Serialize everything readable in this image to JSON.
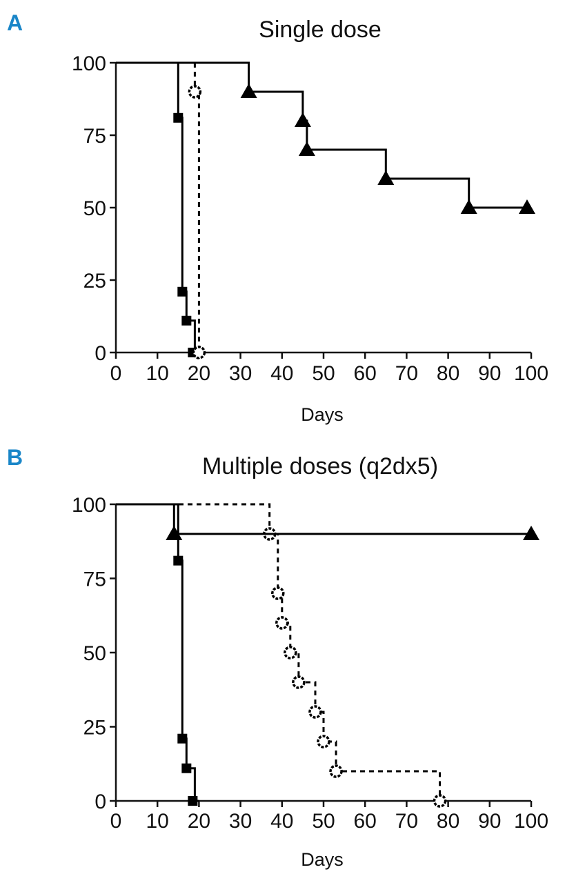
{
  "chart_data": [
    {
      "type": "line",
      "panel_label": "A",
      "title": "Single dose",
      "xlabel": "Days",
      "ylabel": "",
      "xlim": [
        0,
        100
      ],
      "ylim": [
        0,
        100
      ],
      "x_ticks": [
        0,
        10,
        20,
        30,
        40,
        50,
        60,
        70,
        80,
        90,
        100
      ],
      "y_ticks": [
        0,
        25,
        50,
        75,
        100
      ],
      "grid": false,
      "series": [
        {
          "marker": "square",
          "dashed": false,
          "steps": [
            [
              0,
              100
            ],
            [
              15,
              100
            ],
            [
              15,
              81
            ],
            [
              16,
              81
            ],
            [
              16,
              21
            ],
            [
              17,
              21
            ],
            [
              17,
              11
            ],
            [
              19,
              11
            ],
            [
              19,
              0
            ],
            [
              20,
              0
            ]
          ],
          "points": [
            [
              15,
              81
            ],
            [
              16,
              21
            ],
            [
              17,
              11
            ],
            [
              18.5,
              0
            ]
          ]
        },
        {
          "marker": "open-circle",
          "dashed": true,
          "steps": [
            [
              19,
              100
            ],
            [
              19,
              90
            ],
            [
              20,
              90
            ],
            [
              20,
              0
            ],
            [
              21,
              0
            ]
          ],
          "points": [
            [
              19,
              90
            ],
            [
              20,
              0
            ]
          ]
        },
        {
          "marker": "triangle",
          "dashed": false,
          "steps": [
            [
              0,
              100
            ],
            [
              32,
              100
            ],
            [
              32,
              90
            ],
            [
              45,
              90
            ],
            [
              45,
              80
            ],
            [
              46,
              80
            ],
            [
              46,
              70
            ],
            [
              65,
              70
            ],
            [
              65,
              60
            ],
            [
              85,
              60
            ],
            [
              85,
              50
            ],
            [
              99,
              50
            ]
          ],
          "points": [
            [
              32,
              90
            ],
            [
              45,
              80
            ],
            [
              46,
              70
            ],
            [
              65,
              60
            ],
            [
              85,
              50
            ],
            [
              99,
              50
            ]
          ]
        }
      ]
    },
    {
      "type": "line",
      "panel_label": "B",
      "title": "Multiple doses (q2dx5)",
      "xlabel": "Days",
      "ylabel": "",
      "xlim": [
        0,
        100
      ],
      "ylim": [
        0,
        100
      ],
      "x_ticks": [
        0,
        10,
        20,
        30,
        40,
        50,
        60,
        70,
        80,
        90,
        100
      ],
      "y_ticks": [
        0,
        25,
        50,
        75,
        100
      ],
      "grid": false,
      "series": [
        {
          "marker": "square",
          "dashed": false,
          "steps": [
            [
              0,
              100
            ],
            [
              15,
              100
            ],
            [
              15,
              81
            ],
            [
              16,
              81
            ],
            [
              16,
              21
            ],
            [
              17,
              21
            ],
            [
              17,
              11
            ],
            [
              19,
              11
            ],
            [
              19,
              0
            ],
            [
              20,
              0
            ]
          ],
          "points": [
            [
              15,
              81
            ],
            [
              16,
              21
            ],
            [
              17,
              11
            ],
            [
              18.5,
              0
            ]
          ]
        },
        {
          "marker": "open-circle",
          "dashed": true,
          "steps": [
            [
              0,
              100
            ],
            [
              37,
              100
            ],
            [
              37,
              90
            ],
            [
              39,
              90
            ],
            [
              39,
              70
            ],
            [
              40,
              70
            ],
            [
              40,
              60
            ],
            [
              42,
              60
            ],
            [
              42,
              50
            ],
            [
              44,
              50
            ],
            [
              44,
              40
            ],
            [
              48,
              40
            ],
            [
              48,
              30
            ],
            [
              50,
              30
            ],
            [
              50,
              20
            ],
            [
              53,
              20
            ],
            [
              53,
              10
            ],
            [
              78,
              10
            ],
            [
              78,
              0
            ]
          ],
          "points": [
            [
              37,
              90
            ],
            [
              39,
              70
            ],
            [
              40,
              60
            ],
            [
              42,
              50
            ],
            [
              44,
              40
            ],
            [
              48,
              30
            ],
            [
              50,
              20
            ],
            [
              53,
              10
            ],
            [
              78,
              0
            ]
          ]
        },
        {
          "marker": "triangle",
          "dashed": false,
          "steps": [
            [
              0,
              100
            ],
            [
              14,
              100
            ],
            [
              14,
              90
            ],
            [
              100,
              90
            ]
          ],
          "points": [
            [
              14,
              90
            ],
            [
              100,
              90
            ]
          ]
        }
      ]
    }
  ]
}
